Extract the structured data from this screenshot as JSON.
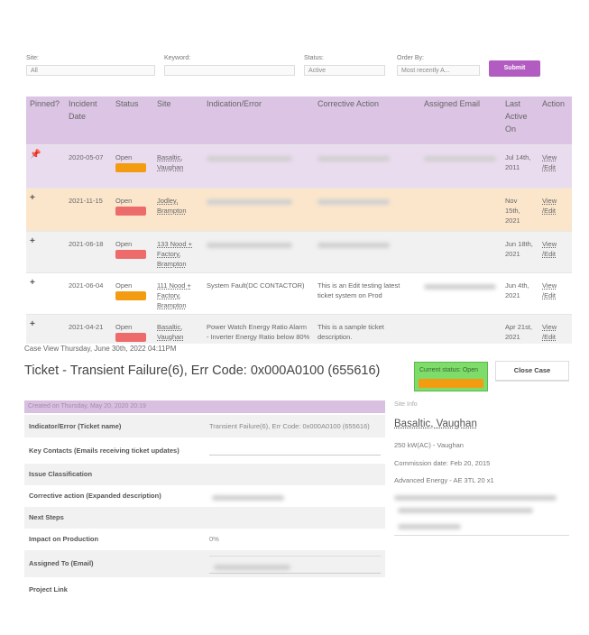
{
  "filters": [
    {
      "label": "Site:",
      "value": "All"
    },
    {
      "label": "Keyword:"
    },
    {
      "label": "Status:",
      "value": "Active"
    },
    {
      "label": "Order By:",
      "value": "Most recently A..."
    }
  ],
  "submit": "Submit",
  "table": {
    "headers": [
      "Pinned?",
      "Incident Date",
      "Status",
      "Site",
      "Indication/Error",
      "Corrective Action",
      "Assigned Email",
      "Last Active On",
      "Action"
    ],
    "rows": [
      {
        "pinned": true,
        "date": "2020-05-07",
        "status": "Open",
        "badge_color": "#f39c12",
        "site": "Basaltic, Vaughan",
        "last_active": "Jul 14th, 2011",
        "action": "View /Edit",
        "background": "#eadcef"
      },
      {
        "pinned": false,
        "date": "2021-11-15",
        "status": "Open",
        "badge_color": "#ee6b6b",
        "site": "Jodley, Brampton",
        "last_active": "Nov 15th, 2021",
        "action": "View /Edit",
        "background": "#fbe6cc"
      },
      {
        "pinned": false,
        "date": "2021-06-18",
        "status": "Open",
        "badge_color": "#ee6b6b",
        "site": "133 Nood + Factory, Brampton",
        "last_active": "Jun 18th, 2021",
        "action": "View /Edit",
        "background": "#f1f1f1"
      },
      {
        "pinned": false,
        "date": "2021-06-04",
        "status": "Open",
        "badge_color": "#f39c12",
        "site": "111 Nood + Factory, Brampton",
        "indication": "System Fault(DC CONTACTOR)",
        "corrective": "This is an Edit testing latest ticket system on Prod",
        "last_active": "Jun 4th, 2021",
        "action": "View /Edit",
        "background": "#ffffff"
      },
      {
        "pinned": false,
        "date": "2021-04-21",
        "status": "Open",
        "badge_color": "#ee6b6b",
        "site": "Basaltic, Vaughan",
        "indication": "Power Watch Energy Ratio Alarm - Inverter Energy Ratio below 80%",
        "corrective": "This is a sample ticket description.",
        "last_active": "Apr 21st, 2021",
        "action": "View /Edit",
        "background": "#f1f1f1"
      }
    ]
  },
  "case": {
    "timestamp": "Case View Thursday, June 30th, 2022 04:11PM",
    "title": "Ticket - Transient Failure(6), Err Code: 0x000A0100 (655616)",
    "current_status": "Current status: Open",
    "close_button": "Close Case"
  },
  "details": {
    "created": "Created on Thursday, May 20, 2020 20:19",
    "fields": [
      {
        "label": "Indicator/Error (Ticket name)",
        "value": "Transient Failure(6), Err Code: 0x000A0100 (655616)"
      },
      {
        "label": "Key Contacts (Emails receiving ticket updates)"
      },
      {
        "label": "Issue Classification"
      },
      {
        "label": "Corrective action (Expanded description)"
      },
      {
        "label": "Next Steps"
      },
      {
        "label": "Impact on Production",
        "value": "0%"
      },
      {
        "label": "Assigned To (Email)"
      },
      {
        "label": "Project Link"
      }
    ]
  },
  "site_info": {
    "heading": "Site Info",
    "name": "Basaltic, Vaughan",
    "lines": [
      "250 kW(AC) - Vaughan",
      "Commission date: Feb 20, 2015",
      "Advanced Energy - AE 3TL 20 x1"
    ]
  }
}
